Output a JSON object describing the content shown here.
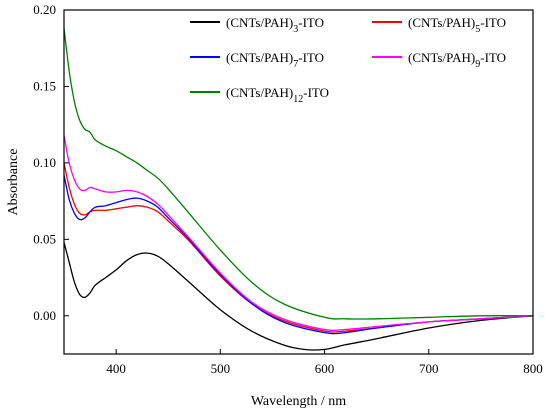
{
  "chart_data": {
    "type": "line",
    "xlabel": "Wavelength / nm",
    "ylabel": "Absorbance",
    "xlim": [
      350,
      800
    ],
    "ylim": [
      -0.025,
      0.2
    ],
    "xticks": [
      400,
      500,
      600,
      700,
      800
    ],
    "yticks": [
      0.0,
      0.05,
      0.1,
      0.15,
      0.2
    ],
    "ytick_labels": [
      "0.00",
      "0.05",
      "0.10",
      "0.15",
      "0.20"
    ],
    "legend": {
      "placement": "top-right",
      "entries": [
        {
          "prefix": "(CNTs/PAH)",
          "sub": "3",
          "suffix": "-ITO",
          "color": "#000000"
        },
        {
          "prefix": "(CNTs/PAH)",
          "sub": "5",
          "suffix": "-ITO",
          "color": "#ff0000"
        },
        {
          "prefix": "(CNTs/PAH)",
          "sub": "7",
          "suffix": "-ITO",
          "color": "#0000ff"
        },
        {
          "prefix": "(CNTs/PAH)",
          "sub": "9",
          "suffix": "-ITO",
          "color": "#ff00ff"
        },
        {
          "prefix": "(CNTs/PAH)",
          "sub": "12",
          "suffix": "-ITO",
          "color": "#008000"
        }
      ]
    },
    "series": [
      {
        "name": "(CNTs/PAH)3-ITO",
        "color": "#000000",
        "x": [
          350,
          355,
          360,
          365,
          370,
          375,
          380,
          390,
          400,
          410,
          420,
          430,
          440,
          450,
          470,
          500,
          530,
          560,
          580,
          600,
          620,
          650,
          700,
          750,
          800
        ],
        "y": [
          0.048,
          0.035,
          0.022,
          0.014,
          0.012,
          0.015,
          0.02,
          0.025,
          0.03,
          0.036,
          0.04,
          0.041,
          0.039,
          0.034,
          0.022,
          0.004,
          -0.01,
          -0.019,
          -0.022,
          -0.022,
          -0.019,
          -0.015,
          -0.008,
          -0.003,
          0.0
        ]
      },
      {
        "name": "(CNTs/PAH)5-ITO",
        "color": "#ff0000",
        "x": [
          350,
          355,
          360,
          365,
          370,
          375,
          380,
          390,
          400,
          410,
          420,
          430,
          440,
          450,
          470,
          500,
          530,
          560,
          600,
          620,
          650,
          700,
          750,
          800
        ],
        "y": [
          0.1,
          0.084,
          0.073,
          0.067,
          0.066,
          0.068,
          0.069,
          0.069,
          0.07,
          0.071,
          0.072,
          0.071,
          0.068,
          0.062,
          0.049,
          0.026,
          0.008,
          -0.003,
          -0.01,
          -0.01,
          -0.008,
          -0.004,
          -0.002,
          0.0
        ]
      },
      {
        "name": "(CNTs/PAH)7-ITO",
        "color": "#0000ff",
        "x": [
          350,
          355,
          360,
          365,
          370,
          375,
          380,
          390,
          400,
          410,
          420,
          430,
          440,
          450,
          470,
          500,
          530,
          560,
          600,
          620,
          650,
          700,
          750,
          800
        ],
        "y": [
          0.092,
          0.076,
          0.067,
          0.063,
          0.064,
          0.068,
          0.071,
          0.072,
          0.074,
          0.076,
          0.077,
          0.075,
          0.071,
          0.064,
          0.05,
          0.027,
          0.008,
          -0.004,
          -0.011,
          -0.011,
          -0.008,
          -0.004,
          -0.002,
          0.0
        ]
      },
      {
        "name": "(CNTs/PAH)9-ITO",
        "color": "#ff00ff",
        "x": [
          350,
          355,
          360,
          365,
          370,
          375,
          380,
          390,
          400,
          410,
          420,
          430,
          440,
          450,
          470,
          500,
          530,
          560,
          600,
          620,
          650,
          700,
          750,
          800
        ],
        "y": [
          0.118,
          0.1,
          0.089,
          0.083,
          0.082,
          0.084,
          0.083,
          0.081,
          0.081,
          0.082,
          0.081,
          0.078,
          0.073,
          0.066,
          0.051,
          0.028,
          0.009,
          -0.002,
          -0.009,
          -0.009,
          -0.007,
          -0.004,
          -0.002,
          0.0
        ]
      },
      {
        "name": "(CNTs/PAH)12-ITO",
        "color": "#008000",
        "x": [
          350,
          355,
          360,
          365,
          370,
          375,
          380,
          390,
          400,
          410,
          420,
          430,
          440,
          450,
          470,
          500,
          530,
          560,
          600,
          620,
          650,
          700,
          750,
          800
        ],
        "y": [
          0.188,
          0.16,
          0.14,
          0.128,
          0.122,
          0.12,
          0.115,
          0.111,
          0.108,
          0.104,
          0.1,
          0.095,
          0.09,
          0.083,
          0.067,
          0.043,
          0.022,
          0.008,
          -0.001,
          -0.002,
          -0.002,
          -0.001,
          0.0,
          0.0
        ]
      }
    ]
  }
}
